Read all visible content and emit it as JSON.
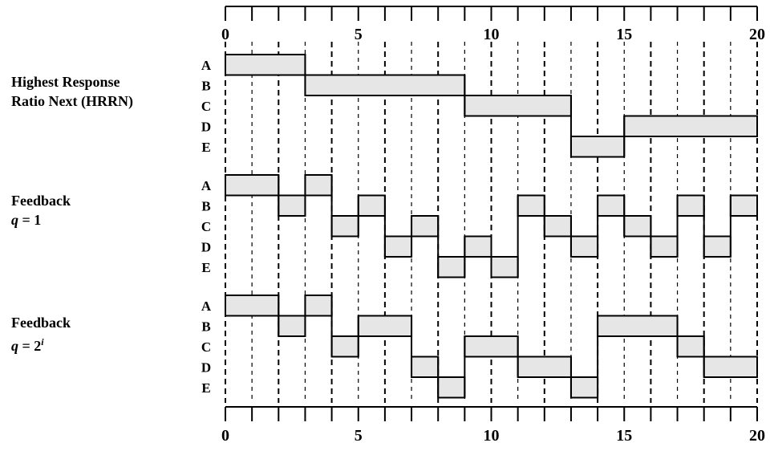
{
  "axis": {
    "min": 0,
    "max": 20,
    "ticks": [
      0,
      1,
      2,
      3,
      4,
      5,
      6,
      7,
      8,
      9,
      10,
      11,
      12,
      13,
      14,
      15,
      16,
      17,
      18,
      19,
      20
    ],
    "labels": [
      {
        "value": 0,
        "text": "0"
      },
      {
        "value": 5,
        "text": "5"
      },
      {
        "value": 10,
        "text": "10"
      },
      {
        "value": 15,
        "text": "15"
      },
      {
        "value": 20,
        "text": "20"
      }
    ]
  },
  "processes": [
    "A",
    "B",
    "C",
    "D",
    "E"
  ],
  "sections": [
    {
      "id": "hrrn",
      "title_line1": "Highest Response",
      "title_line2": "Ratio Next (HRRN)",
      "schedule": [
        {
          "process": "A",
          "start": 0,
          "end": 3
        },
        {
          "process": "B",
          "start": 3,
          "end": 9
        },
        {
          "process": "C",
          "start": 9,
          "end": 13
        },
        {
          "process": "E",
          "start": 13,
          "end": 15
        },
        {
          "process": "D",
          "start": 15,
          "end": 20
        }
      ]
    },
    {
      "id": "feedback-q1",
      "title_line1": "Feedback",
      "title_line2_prefix": "q",
      "title_line2_suffix": " = 1",
      "schedule": [
        {
          "process": "A",
          "start": 0,
          "end": 2
        },
        {
          "process": "B",
          "start": 2,
          "end": 3
        },
        {
          "process": "A",
          "start": 3,
          "end": 4
        },
        {
          "process": "C",
          "start": 4,
          "end": 5
        },
        {
          "process": "B",
          "start": 5,
          "end": 6
        },
        {
          "process": "D",
          "start": 6,
          "end": 7
        },
        {
          "process": "C",
          "start": 7,
          "end": 8
        },
        {
          "process": "E",
          "start": 8,
          "end": 9
        },
        {
          "process": "D",
          "start": 9,
          "end": 10
        },
        {
          "process": "E",
          "start": 10,
          "end": 11
        },
        {
          "process": "B",
          "start": 11,
          "end": 12
        },
        {
          "process": "C",
          "start": 12,
          "end": 13
        },
        {
          "process": "D",
          "start": 13,
          "end": 14
        },
        {
          "process": "B",
          "start": 14,
          "end": 15
        },
        {
          "process": "C",
          "start": 15,
          "end": 16
        },
        {
          "process": "D",
          "start": 16,
          "end": 17
        },
        {
          "process": "B",
          "start": 17,
          "end": 18
        },
        {
          "process": "D",
          "start": 18,
          "end": 19
        },
        {
          "process": "B",
          "start": 19,
          "end": 20
        }
      ]
    },
    {
      "id": "feedback-q2i",
      "title_line1": "Feedback",
      "title_line2_prefix": "q",
      "title_line2_suffix": " = 2",
      "title_line2_sup": "i",
      "schedule": [
        {
          "process": "A",
          "start": 0,
          "end": 2
        },
        {
          "process": "B",
          "start": 2,
          "end": 3
        },
        {
          "process": "A",
          "start": 3,
          "end": 4
        },
        {
          "process": "C",
          "start": 4,
          "end": 5
        },
        {
          "process": "B",
          "start": 5,
          "end": 7
        },
        {
          "process": "D",
          "start": 7,
          "end": 8
        },
        {
          "process": "E",
          "start": 8,
          "end": 9
        },
        {
          "process": "C",
          "start": 9,
          "end": 11
        },
        {
          "process": "D",
          "start": 11,
          "end": 13
        },
        {
          "process": "E",
          "start": 13,
          "end": 14
        },
        {
          "process": "B",
          "start": 14,
          "end": 17
        },
        {
          "process": "C",
          "start": 17,
          "end": 18
        },
        {
          "process": "D",
          "start": 18,
          "end": 20
        }
      ]
    }
  ],
  "colors": {
    "bar_fill": "#e6e6e6",
    "line": "#000000"
  }
}
